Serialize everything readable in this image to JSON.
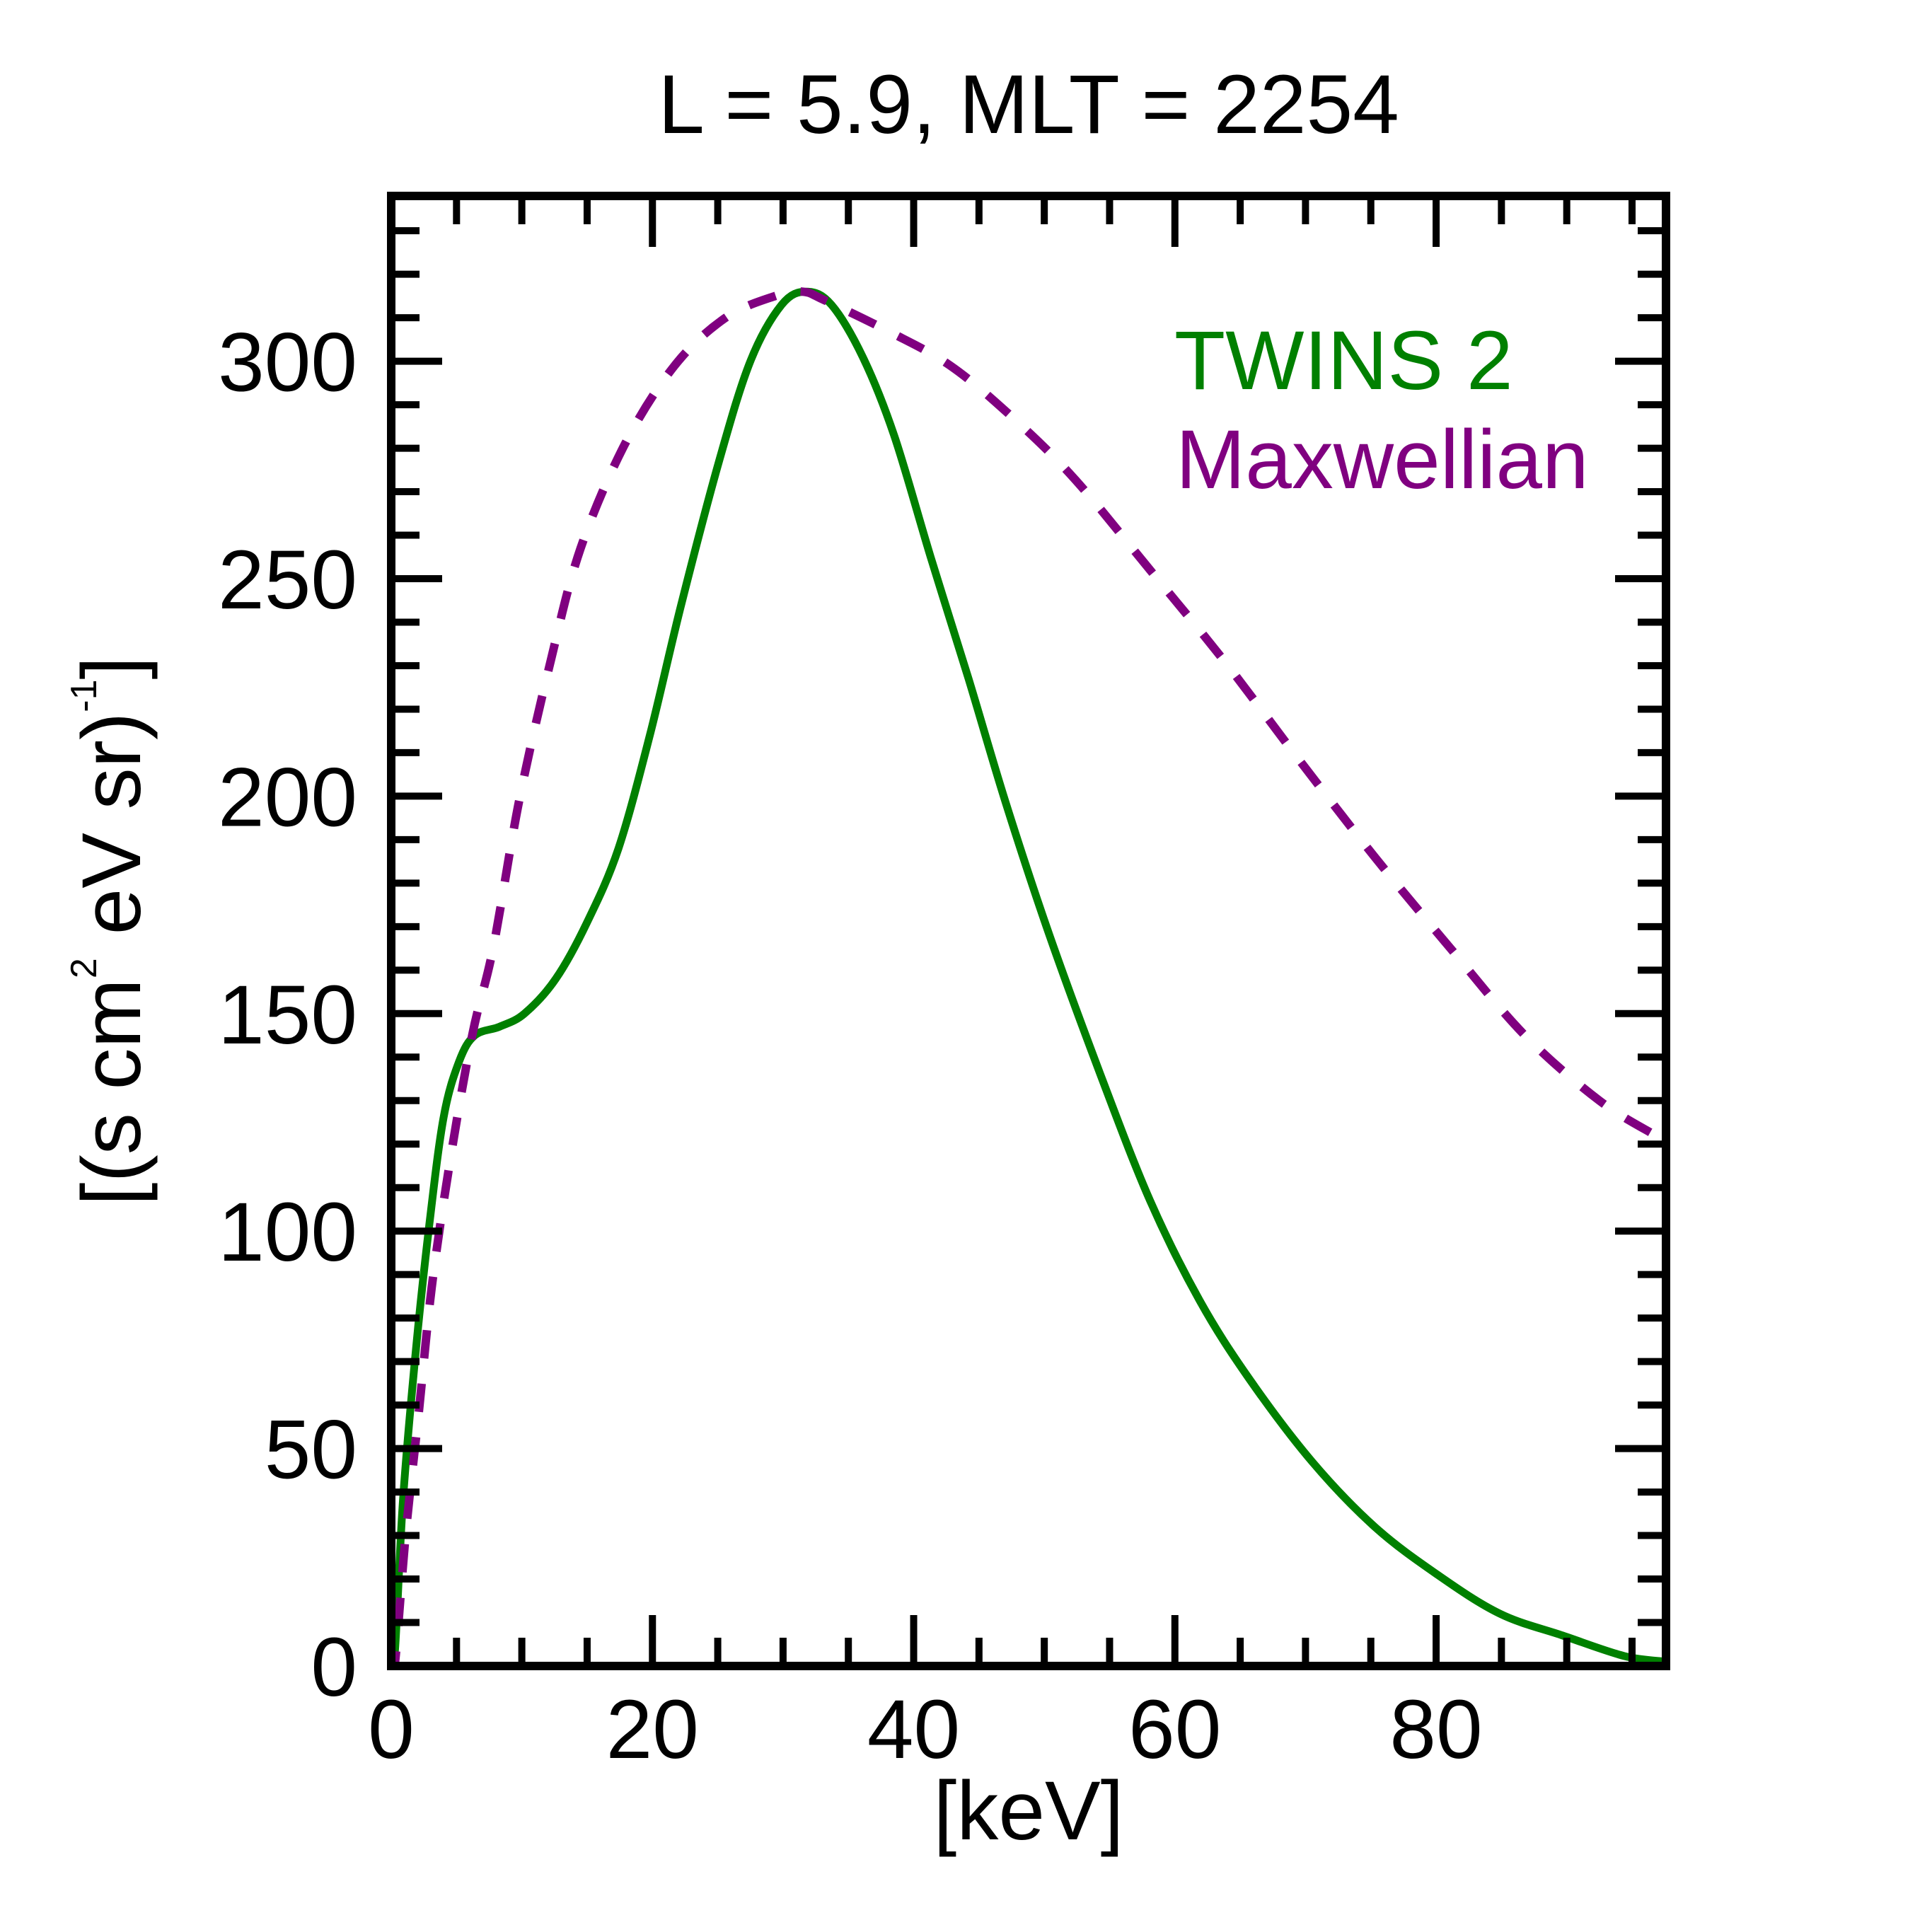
{
  "chart_data": {
    "type": "line",
    "title": "L =  5.9, MLT = 2254",
    "xlabel": "[keV]",
    "ylabel": {
      "parts": [
        "[(s cm",
        "2",
        " eV sr)",
        "-1",
        "]"
      ],
      "text": "[(s cm^2 eV sr)^-1]"
    },
    "xlim": [
      0,
      97.6
    ],
    "ylim": [
      0,
      338
    ],
    "x_major_ticks": [
      0,
      20,
      40,
      60,
      80
    ],
    "x_tick_labels": [
      "0",
      "20",
      "40",
      "60",
      "80"
    ],
    "x_minor_step": 5,
    "y_major_ticks": [
      0,
      50,
      100,
      150,
      200,
      250,
      300
    ],
    "y_tick_labels": [
      "0",
      "50",
      "100",
      "150",
      "200",
      "250",
      "300"
    ],
    "y_minor_step": 10,
    "grid": false,
    "legend_position": "top-right",
    "series": [
      {
        "name": "TWINS 2",
        "color": "#008000",
        "style": "solid",
        "x": [
          0,
          0.3,
          0.9,
          1.9,
          2.9,
          4.0,
          5.2,
          6.4,
          8.3,
          10.2,
          12.6,
          15.0,
          17.4,
          19.8,
          22.2,
          25.1,
          27.5,
          29.9,
          31.8,
          33.7,
          36.1,
          38.5,
          41.3,
          44.2,
          47.1,
          50.4,
          54.3,
          58.1,
          61.9,
          65.7,
          70.5,
          75.3,
          80.1,
          84.9,
          89.7,
          94.4,
          97.6
        ],
        "y": [
          0,
          4,
          38,
          73,
          101,
          126,
          139,
          145,
          147,
          150,
          158,
          171,
          188,
          214,
          244,
          277,
          300,
          313,
          316,
          313,
          301,
          283,
          255,
          227,
          198,
          168,
          136,
          107,
          84,
          66,
          47,
          32,
          21,
          12,
          7,
          2.3,
          1
        ]
      },
      {
        "name": "Maxwellian",
        "color": "#800080",
        "style": "dashed",
        "x": [
          0,
          0.3,
          1.1,
          2.1,
          3.1,
          4.5,
          6.2,
          7.8,
          9.8,
          12.2,
          14.5,
          17.9,
          21.7,
          25.6,
          29.4,
          31.5,
          33.2,
          38.0,
          42.8,
          47.6,
          52.3,
          58.1,
          63.8,
          69.6,
          75.3,
          81.1,
          86.8,
          92.5,
          96.8
        ],
        "y": [
          0,
          1,
          30,
          58,
          87,
          116,
          145,
          165,
          199,
          231,
          257,
          281,
          299,
          310,
          315,
          316,
          314,
          307,
          299,
          287,
          273,
          252,
          231,
          208,
          186,
          165,
          145,
          130,
          122
        ]
      }
    ]
  }
}
